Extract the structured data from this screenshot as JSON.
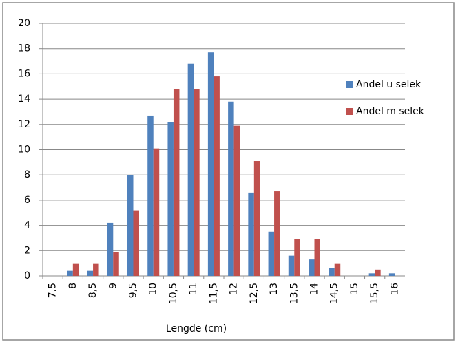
{
  "chart_data": {
    "type": "bar",
    "x_label": "Lengde (cm)",
    "categories": [
      "7,5",
      "8",
      "8,5",
      "9",
      "9,5",
      "10",
      "10,5",
      "11",
      "11,5",
      "12",
      "12,5",
      "13",
      "13,5",
      "14",
      "14,5",
      "15",
      "15,5",
      "16"
    ],
    "series": [
      {
        "name": "Andel u selek",
        "color": "#4f81bd",
        "values": [
          0,
          0.4,
          0.4,
          4.2,
          8.0,
          12.7,
          12.2,
          16.8,
          17.7,
          13.8,
          6.6,
          3.5,
          1.6,
          1.3,
          0.6,
          0,
          0.2,
          0.2
        ]
      },
      {
        "name": "Andel  m selek",
        "color": "#c0504d",
        "values": [
          0,
          1.0,
          1.0,
          1.9,
          5.2,
          10.1,
          14.8,
          14.8,
          15.8,
          11.9,
          9.1,
          6.7,
          2.9,
          2.9,
          1.0,
          0,
          0.5,
          0
        ]
      }
    ],
    "ylim": [
      0,
      20
    ],
    "yticks": [
      0,
      2,
      4,
      6,
      8,
      10,
      12,
      14,
      16,
      18,
      20
    ],
    "grid": true,
    "legend": "right"
  }
}
